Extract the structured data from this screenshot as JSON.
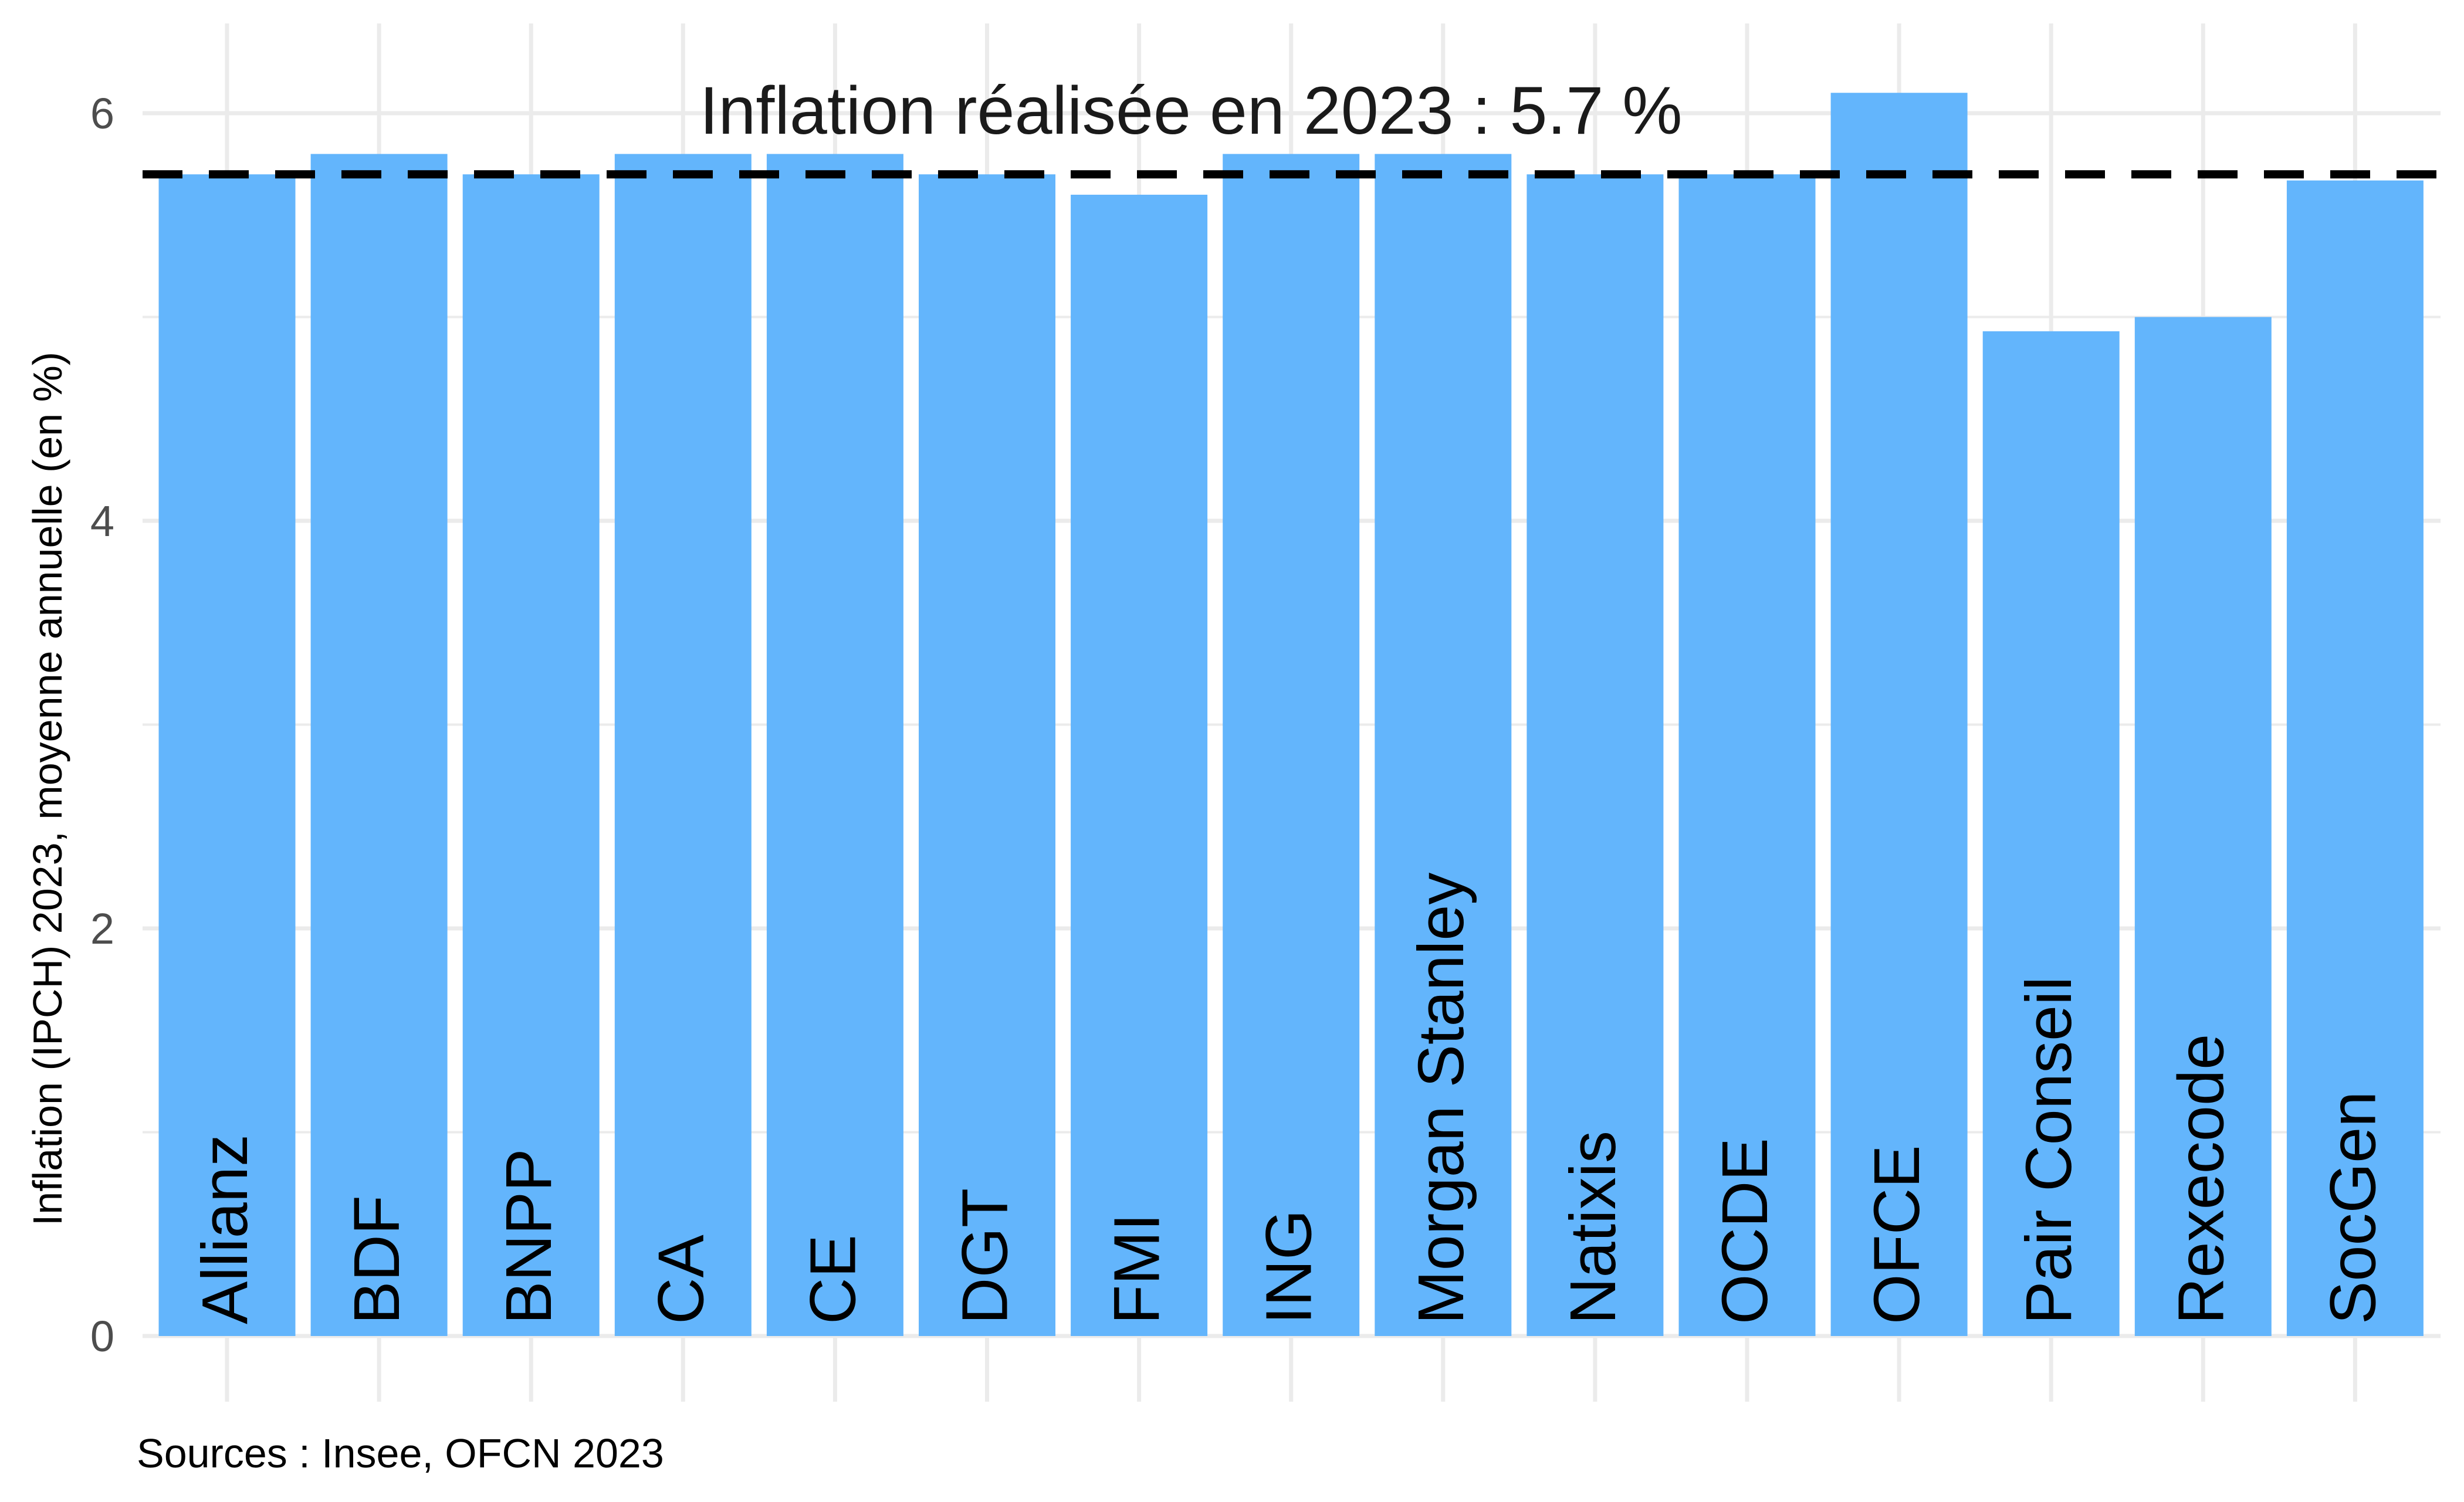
{
  "chart_data": {
    "type": "bar",
    "categories": [
      "Allianz",
      "BDF",
      "BNPP",
      "CA",
      "CE",
      "DGT",
      "FMI",
      "ING",
      "Morgan Stanley",
      "Natixis",
      "OCDE",
      "OFCE",
      "Pair Conseil",
      "Rexecode",
      "SocGen"
    ],
    "values": [
      5.7,
      5.8,
      5.7,
      5.8,
      5.8,
      5.7,
      5.6,
      5.8,
      5.8,
      5.7,
      5.7,
      6.1,
      4.93,
      5.0,
      5.67
    ],
    "ylabel": "Inflation (IPCH) 2023, moyenne annuelle (en %)",
    "xlabel": "",
    "ylim": [
      0,
      6.3
    ],
    "yticks": [
      0,
      2,
      4,
      6
    ],
    "reference_line": {
      "value": 5.7,
      "style": "dashed",
      "color": "#000000"
    },
    "annotation": "Inflation réalisée en 2023 : 5.7 %",
    "caption": "Sources : Insee, OFCN 2023",
    "grid": true,
    "legend": "none",
    "bar_color": "#63b5fc",
    "grid_color": "#ebebeb"
  }
}
